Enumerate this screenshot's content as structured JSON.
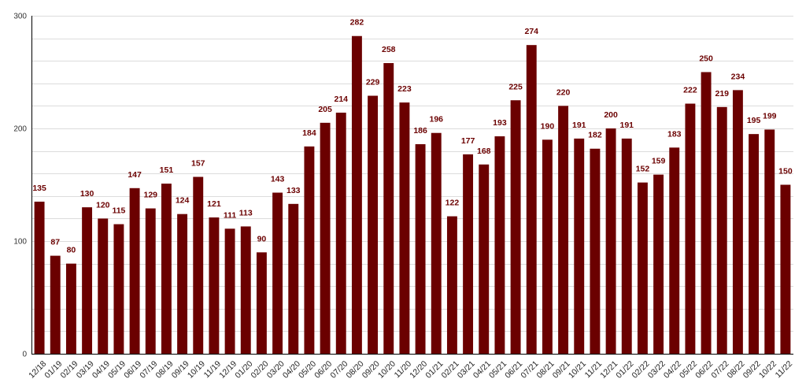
{
  "chart_data": {
    "type": "bar",
    "title": "",
    "xlabel": "",
    "ylabel": "",
    "ylim": [
      0,
      300
    ],
    "yticks": [
      0,
      100,
      200,
      300
    ],
    "grid": true,
    "bar_color": "#6b0000",
    "label_color": "#6b0000",
    "categories": [
      "12/18",
      "01/19",
      "02/19",
      "03/19",
      "04/19",
      "05/19",
      "06/19",
      "07/19",
      "08/19",
      "09/19",
      "10/19",
      "11/19",
      "12/19",
      "01/20",
      "02/20",
      "03/20",
      "04/20",
      "05/20",
      "06/20",
      "07/20",
      "08/20",
      "09/20",
      "10/20",
      "11/20",
      "12/20",
      "01/21",
      "02/21",
      "03/21",
      "04/21",
      "05/21",
      "06/21",
      "07/21",
      "08/21",
      "09/21",
      "10/21",
      "11/21",
      "12/21",
      "01/22",
      "02/22",
      "03/22",
      "04/22",
      "05/22",
      "06/22",
      "07/22",
      "08/22",
      "09/22",
      "10/22",
      "11/22"
    ],
    "values": [
      135,
      87,
      80,
      130,
      120,
      115,
      147,
      129,
      151,
      124,
      157,
      121,
      111,
      113,
      90,
      143,
      133,
      184,
      205,
      214,
      282,
      229,
      258,
      223,
      186,
      196,
      122,
      177,
      168,
      193,
      225,
      274,
      190,
      220,
      191,
      182,
      200,
      191,
      152,
      159,
      183,
      222,
      250,
      219,
      234,
      195,
      199,
      150
    ]
  }
}
